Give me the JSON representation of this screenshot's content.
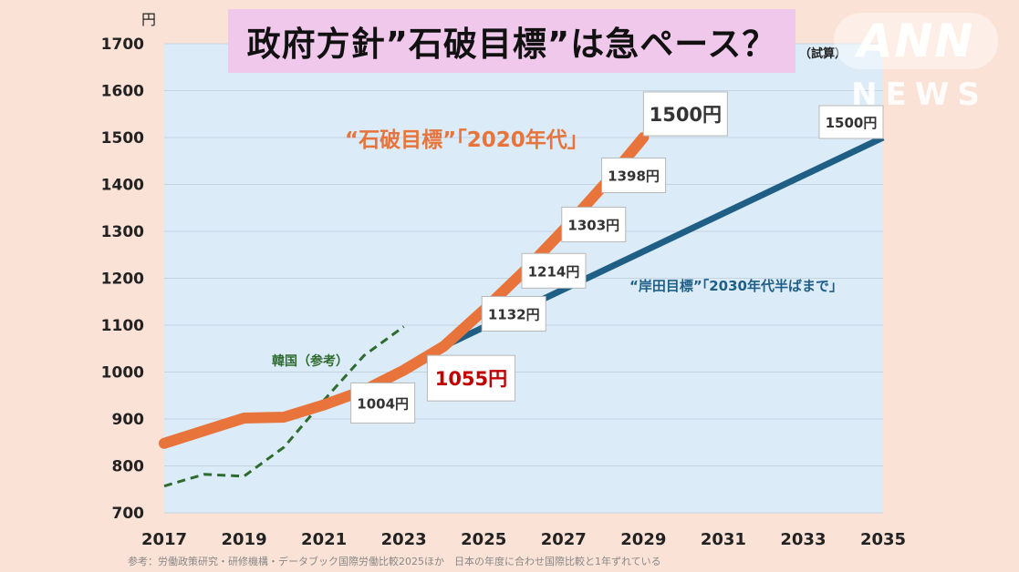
{
  "title": "政府方針”石破目標”は急ペース？",
  "title_note": "（試算）",
  "logo": {
    "main": "ANN",
    "sub": "NEWS"
  },
  "source": "参考：労働政策研究・研修機構・データブック国際労働比較2025ほか　日本の年度に合わせ国際比較と1年ずれている",
  "colors": {
    "background": "#fbe2d6",
    "plot_area": "#dcebf8",
    "ishiba": "#e8743b",
    "kishida": "#1f5f86",
    "korea": "#2e6b2e",
    "title_box": "#f0c8ec",
    "highlight_label": "#c00000"
  },
  "chart_data": {
    "type": "line",
    "y_unit": "円",
    "ylim": [
      700,
      1700
    ],
    "yticks": [
      700,
      800,
      900,
      1000,
      1100,
      1200,
      1300,
      1400,
      1500,
      1600,
      1700
    ],
    "xlim": [
      2017,
      2035
    ],
    "xticks": [
      2017,
      2019,
      2021,
      2023,
      2025,
      2027,
      2029,
      2031,
      2033,
      2035
    ],
    "grid": true,
    "series": [
      {
        "name": "韓国（参考）",
        "style": "dashed",
        "x": [
          2017,
          2018,
          2019,
          2020,
          2021,
          2022,
          2023
        ],
        "y": [
          757,
          782,
          778,
          840,
          940,
          1035,
          1097
        ]
      },
      {
        "name": "“石破目標”「2020年代」",
        "style": "thick",
        "x": [
          2017,
          2019,
          2020,
          2021,
          2022,
          2023,
          2024,
          2025,
          2026,
          2027,
          2028,
          2029
        ],
        "y": [
          848,
          902,
          904,
          930,
          961,
          1004,
          1055,
          1132,
          1214,
          1303,
          1398,
          1500
        ]
      },
      {
        "name": "“岸田目標”「2030年代半ばまで」",
        "style": "solid",
        "x": [
          2023,
          2024,
          2035
        ],
        "y": [
          1004,
          1055,
          1500
        ]
      }
    ],
    "point_labels": [
      {
        "text": "1004円",
        "x": 2023,
        "y": 1004,
        "emphasis": "normal"
      },
      {
        "text": "1055円",
        "x": 2024,
        "y": 1055,
        "emphasis": "highlight"
      },
      {
        "text": "1132円",
        "x": 2025,
        "y": 1132,
        "emphasis": "normal"
      },
      {
        "text": "1214円",
        "x": 2026,
        "y": 1214,
        "emphasis": "normal"
      },
      {
        "text": "1303円",
        "x": 2027,
        "y": 1303,
        "emphasis": "normal"
      },
      {
        "text": "1398円",
        "x": 2028,
        "y": 1398,
        "emphasis": "normal"
      },
      {
        "text": "1500円",
        "x": 2029,
        "y": 1500,
        "emphasis": "large"
      },
      {
        "text": "1500円",
        "x": 2035,
        "y": 1500,
        "emphasis": "normal"
      }
    ]
  }
}
